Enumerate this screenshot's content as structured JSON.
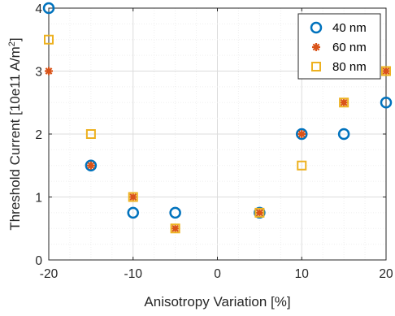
{
  "chart_data": {
    "type": "scatter",
    "xlabel": "Anisotropy Variation [%]",
    "ylabel": "Threshold Current [10e11 A/m",
    "ylabel_superscript": "2",
    "ylabel_close": "]",
    "xlim": [
      -20,
      20
    ],
    "ylim": [
      0,
      4
    ],
    "xticks": [
      -20,
      -10,
      0,
      10,
      20
    ],
    "yticks": [
      0,
      1,
      2,
      3,
      4
    ],
    "grid": "major and minor",
    "legend_position": "top-right",
    "series": [
      {
        "name": "40 nm",
        "marker": "circle",
        "color": "#0072BD",
        "points": [
          {
            "x": -20,
            "y": 4
          },
          {
            "x": -15,
            "y": 1.5
          },
          {
            "x": -10,
            "y": 0.75
          },
          {
            "x": -5,
            "y": 0.75
          },
          {
            "x": 5,
            "y": 0.75
          },
          {
            "x": 10,
            "y": 2
          },
          {
            "x": 15,
            "y": 2
          },
          {
            "x": 20,
            "y": 2.5
          }
        ]
      },
      {
        "name": "60 nm",
        "marker": "asterisk",
        "color": "#D95319",
        "points": [
          {
            "x": -20,
            "y": 3
          },
          {
            "x": -15,
            "y": 1.5
          },
          {
            "x": -10,
            "y": 1
          },
          {
            "x": -5,
            "y": 0.5
          },
          {
            "x": 5,
            "y": 0.75
          },
          {
            "x": 10,
            "y": 2
          },
          {
            "x": 15,
            "y": 2.5
          },
          {
            "x": 20,
            "y": 3
          }
        ]
      },
      {
        "name": "80 nm",
        "marker": "square",
        "color": "#EDB120",
        "points": [
          {
            "x": -20,
            "y": 3.5
          },
          {
            "x": -15,
            "y": 2
          },
          {
            "x": -10,
            "y": 1
          },
          {
            "x": -5,
            "y": 0.5
          },
          {
            "x": 5,
            "y": 0.75
          },
          {
            "x": 10,
            "y": 1.5
          },
          {
            "x": 15,
            "y": 2.5
          },
          {
            "x": 20,
            "y": 3
          }
        ]
      }
    ]
  }
}
